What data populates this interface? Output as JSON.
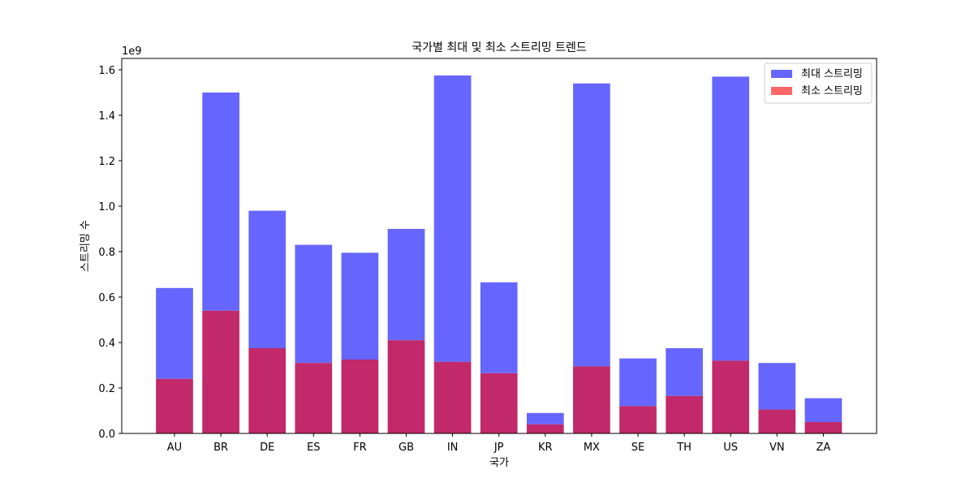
{
  "chart_data": {
    "type": "bar",
    "title": "국가별 최대 및 최소 스트리밍 트렌드",
    "xlabel": "국가",
    "ylabel": "스트리밍 수",
    "y_multiplier_label": "1e9",
    "categories": [
      "AU",
      "BR",
      "DE",
      "ES",
      "FR",
      "GB",
      "IN",
      "JP",
      "KR",
      "MX",
      "SE",
      "TH",
      "US",
      "VN",
      "ZA"
    ],
    "ylim": [
      0,
      1.65
    ],
    "yticks": [
      "0.0",
      "0.2",
      "0.4",
      "0.6",
      "0.8",
      "1.0",
      "1.2",
      "1.4",
      "1.6"
    ],
    "ytick_values": [
      0,
      0.2,
      0.4,
      0.6,
      0.8,
      1.0,
      1.2,
      1.4,
      1.6
    ],
    "series": [
      {
        "name": "최대 스트리밍",
        "color": "#6666ff",
        "values": [
          0.64,
          1.5,
          0.98,
          0.83,
          0.795,
          0.9,
          1.575,
          0.665,
          0.09,
          1.54,
          0.33,
          0.375,
          1.57,
          0.31,
          0.155
        ]
      },
      {
        "name": "최소 스트리밍",
        "color": "#ff6666",
        "values": [
          0.24,
          0.54,
          0.375,
          0.31,
          0.325,
          0.41,
          0.315,
          0.265,
          0.04,
          0.295,
          0.12,
          0.165,
          0.32,
          0.105,
          0.05
        ]
      }
    ],
    "overlap_color": "#c1296a",
    "legend_position": "top-right",
    "grid": false
  }
}
